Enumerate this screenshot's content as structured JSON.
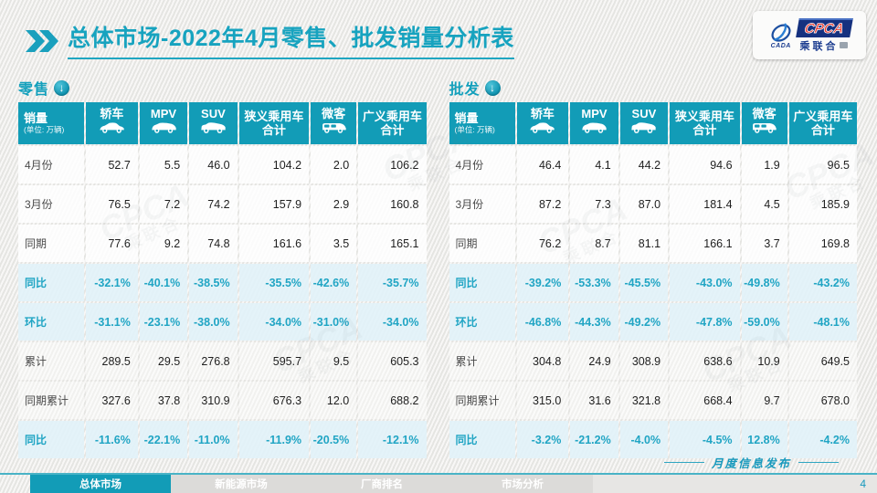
{
  "title": {
    "prefix": "总体市场",
    "rest": "-2022年4月零售、批发销量分析表"
  },
  "logo": {
    "acronym": "CPCA",
    "cn_name": "乘联合",
    "emblem_text": "CADA"
  },
  "watermark": {
    "line1": "CPCA",
    "line2": "乘联合"
  },
  "tables": [
    {
      "section_label": "零售",
      "first_col": {
        "title": "销量",
        "unit": "(单位: 万辆)"
      },
      "columns": [
        {
          "label": "轿车",
          "icon": "sedan-car-icon"
        },
        {
          "label": "MPV",
          "icon": "mpv-car-icon"
        },
        {
          "label": "SUV",
          "icon": "suv-car-icon"
        },
        {
          "label": "狭义乘用车",
          "label2": "合计"
        },
        {
          "label": "微客",
          "icon": "microvan-icon"
        },
        {
          "label": "广义乘用车",
          "label2": "合计"
        }
      ],
      "rows": [
        {
          "label": "4月份",
          "type": "white",
          "values": [
            "52.7",
            "5.5",
            "46.0",
            "104.2",
            "2.0",
            "106.2"
          ]
        },
        {
          "label": "3月份",
          "type": "white",
          "values": [
            "76.5",
            "7.2",
            "74.2",
            "157.9",
            "2.9",
            "160.8"
          ]
        },
        {
          "label": "同期",
          "type": "white",
          "values": [
            "77.6",
            "9.2",
            "74.8",
            "161.6",
            "3.5",
            "165.1"
          ]
        },
        {
          "label": "同比",
          "type": "pct",
          "values": [
            "-32.1%",
            "-40.1%",
            "-38.5%",
            "-35.5%",
            "-42.6%",
            "-35.7%"
          ]
        },
        {
          "label": "环比",
          "type": "pct",
          "values": [
            "-31.1%",
            "-23.1%",
            "-38.0%",
            "-34.0%",
            "-31.0%",
            "-34.0%"
          ]
        },
        {
          "label": "累计",
          "type": "dim",
          "values": [
            "289.5",
            "29.5",
            "276.8",
            "595.7",
            "9.5",
            "605.3"
          ]
        },
        {
          "label": "同期累计",
          "type": "dim",
          "values": [
            "327.6",
            "37.8",
            "310.9",
            "676.3",
            "12.0",
            "688.2"
          ]
        },
        {
          "label": "同比",
          "type": "pct",
          "values": [
            "-11.6%",
            "-22.1%",
            "-11.0%",
            "-11.9%",
            "-20.5%",
            "-12.1%"
          ]
        }
      ]
    },
    {
      "section_label": "批发",
      "first_col": {
        "title": "销量",
        "unit": "(单位: 万辆)"
      },
      "columns": [
        {
          "label": "轿车",
          "icon": "sedan-car-icon"
        },
        {
          "label": "MPV",
          "icon": "mpv-car-icon"
        },
        {
          "label": "SUV",
          "icon": "suv-car-icon"
        },
        {
          "label": "狭义乘用车",
          "label2": "合计"
        },
        {
          "label": "微客",
          "icon": "microvan-icon"
        },
        {
          "label": "广义乘用车",
          "label2": "合计"
        }
      ],
      "rows": [
        {
          "label": "4月份",
          "type": "white",
          "values": [
            "46.4",
            "4.1",
            "44.2",
            "94.6",
            "1.9",
            "96.5"
          ]
        },
        {
          "label": "3月份",
          "type": "white",
          "values": [
            "87.2",
            "7.3",
            "87.0",
            "181.4",
            "4.5",
            "185.9"
          ]
        },
        {
          "label": "同期",
          "type": "white",
          "values": [
            "76.2",
            "8.7",
            "81.1",
            "166.1",
            "3.7",
            "169.8"
          ]
        },
        {
          "label": "同比",
          "type": "pct",
          "values": [
            "-39.2%",
            "-53.3%",
            "-45.5%",
            "-43.0%",
            "-49.8%",
            "-43.2%"
          ]
        },
        {
          "label": "环比",
          "type": "pct",
          "values": [
            "-46.8%",
            "-44.3%",
            "-49.2%",
            "-47.8%",
            "-59.0%",
            "-48.1%"
          ]
        },
        {
          "label": "累计",
          "type": "dim",
          "values": [
            "304.8",
            "24.9",
            "308.9",
            "638.6",
            "10.9",
            "649.5"
          ]
        },
        {
          "label": "同期累计",
          "type": "dim",
          "values": [
            "315.0",
            "31.6",
            "321.8",
            "668.4",
            "9.7",
            "678.0"
          ]
        },
        {
          "label": "同比",
          "type": "pct",
          "values": [
            "-3.2%",
            "-21.2%",
            "-4.0%",
            "-4.5%",
            "12.8%",
            "-4.2%"
          ]
        }
      ]
    }
  ],
  "footer": {
    "tabs": [
      {
        "label": "总体市场",
        "active": true
      },
      {
        "label": "新能源市场",
        "active": false
      },
      {
        "label": "厂商排名",
        "active": false
      },
      {
        "label": "市场分析",
        "active": false
      }
    ],
    "publish_label": "月度信息发布",
    "page_number": "4"
  },
  "colors": {
    "accent_teal": "#129cb7",
    "pct_text": "#21a5c4",
    "pct_row_bg": "#e2f2f8",
    "logo_blue": "#15317f",
    "logo_red": "#e8372c"
  }
}
